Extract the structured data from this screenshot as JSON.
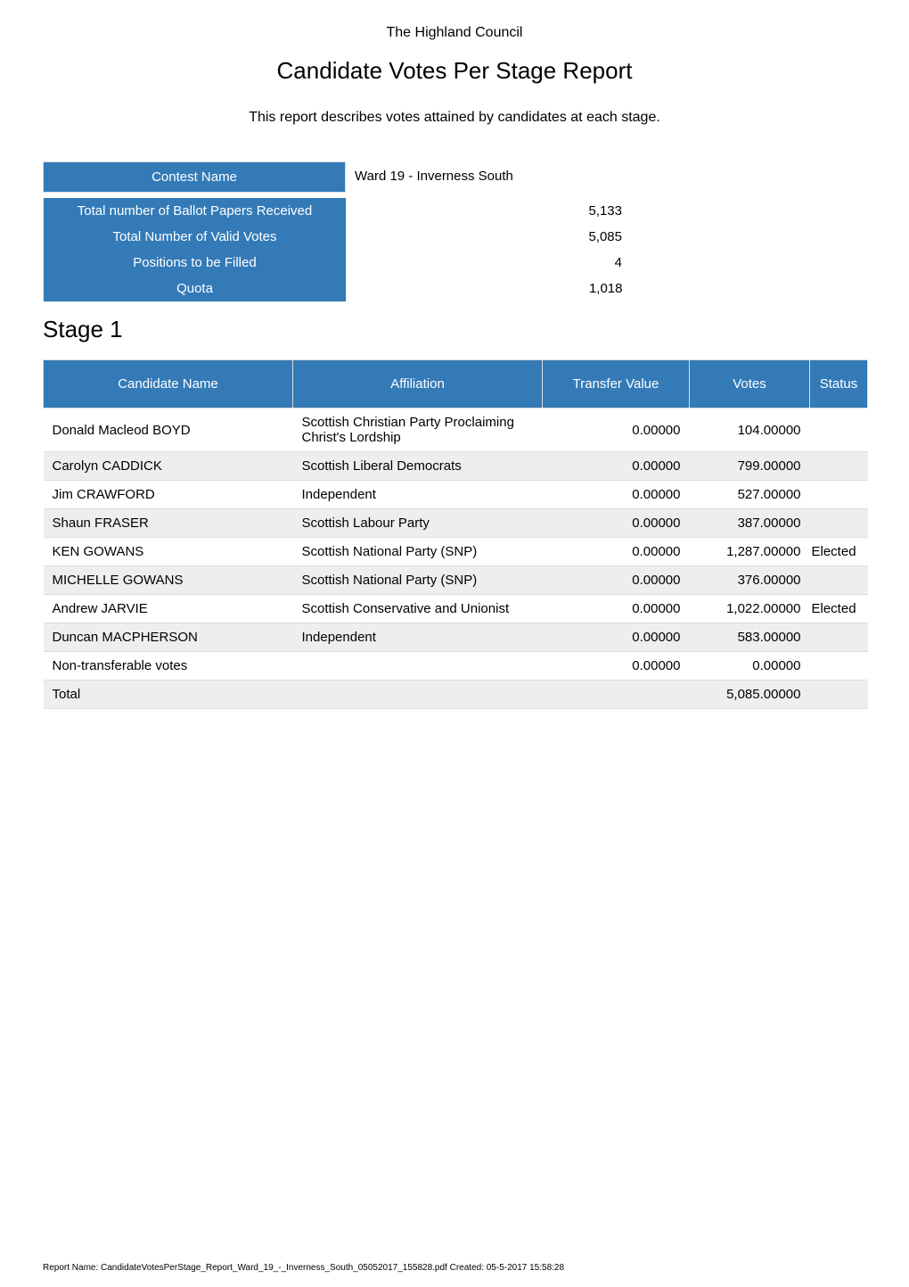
{
  "header": {
    "organisation": "The Highland Council",
    "report_title": "Candidate Votes Per Stage Report",
    "report_description": "This report describes votes attained by candidates at each stage."
  },
  "contest": {
    "label": "Contest Name",
    "value": "Ward 19 - Inverness South"
  },
  "summary": {
    "rows": [
      {
        "label": "Total number of Ballot Papers Received",
        "value": "5,133"
      },
      {
        "label": "Total Number of Valid Votes",
        "value": "5,085"
      },
      {
        "label": "Positions to be Filled",
        "value": "4"
      },
      {
        "label": "Quota",
        "value": "1,018"
      }
    ]
  },
  "stage": {
    "heading": "Stage 1"
  },
  "results": {
    "columns": {
      "name": "Candidate Name",
      "affiliation": "Affiliation",
      "transfer_value": "Transfer Value",
      "votes": "Votes",
      "status": "Status"
    },
    "rows": [
      {
        "name": "Donald Macleod BOYD",
        "affiliation": "Scottish Christian Party Proclaiming Christ's Lordship",
        "transfer_value": "0.00000",
        "votes": "104.00000",
        "status": ""
      },
      {
        "name": "Carolyn CADDICK",
        "affiliation": "Scottish Liberal Democrats",
        "transfer_value": "0.00000",
        "votes": "799.00000",
        "status": ""
      },
      {
        "name": "Jim CRAWFORD",
        "affiliation": "Independent",
        "transfer_value": "0.00000",
        "votes": "527.00000",
        "status": ""
      },
      {
        "name": "Shaun FRASER",
        "affiliation": "Scottish Labour Party",
        "transfer_value": "0.00000",
        "votes": "387.00000",
        "status": ""
      },
      {
        "name": "KEN GOWANS",
        "affiliation": "Scottish National Party (SNP)",
        "transfer_value": "0.00000",
        "votes": "1,287.00000",
        "status": "Elected"
      },
      {
        "name": "MICHELLE GOWANS",
        "affiliation": "Scottish National Party (SNP)",
        "transfer_value": "0.00000",
        "votes": "376.00000",
        "status": ""
      },
      {
        "name": "Andrew JARVIE",
        "affiliation": "Scottish Conservative and Unionist",
        "transfer_value": "0.00000",
        "votes": "1,022.00000",
        "status": "Elected"
      },
      {
        "name": "Duncan MACPHERSON",
        "affiliation": "Independent",
        "transfer_value": "0.00000",
        "votes": "583.00000",
        "status": ""
      },
      {
        "name": "Non-transferable votes",
        "affiliation": "",
        "transfer_value": "0.00000",
        "votes": "0.00000",
        "status": ""
      },
      {
        "name": "Total",
        "affiliation": "",
        "transfer_value": "",
        "votes": "5,085.00000",
        "status": ""
      }
    ],
    "alt_row_bg": "#eeeeee",
    "header_bg": "#337ab7",
    "header_fg": "#ffffff",
    "border_color": "#dddddd"
  },
  "footer": {
    "text": "Report Name: CandidateVotesPerStage_Report_Ward_19_-_Inverness_South_05052017_155828.pdf Created: 05-5-2017 15:58:28"
  }
}
